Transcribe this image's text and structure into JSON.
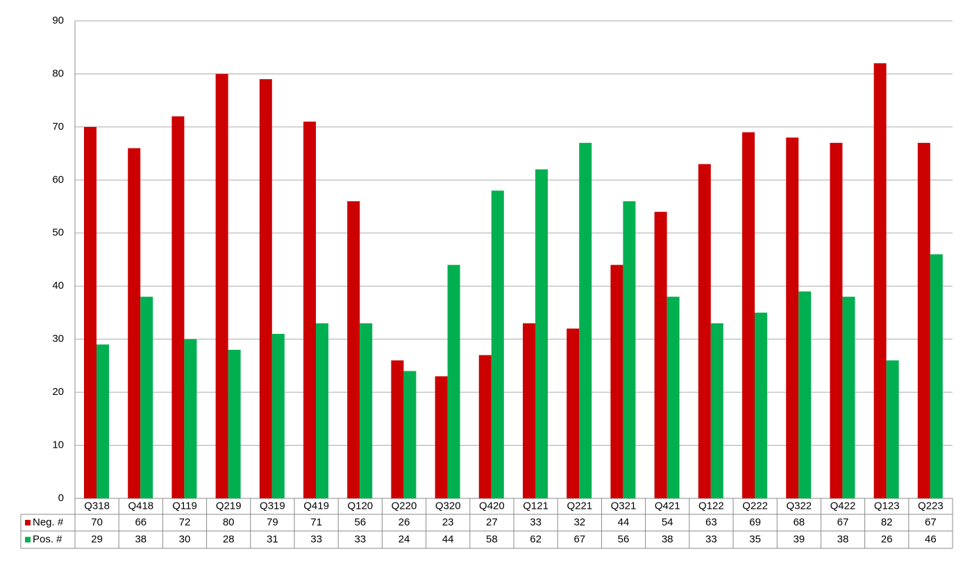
{
  "chart_data": {
    "type": "bar",
    "categories": [
      "Q318",
      "Q418",
      "Q119",
      "Q219",
      "Q319",
      "Q419",
      "Q120",
      "Q220",
      "Q320",
      "Q420",
      "Q121",
      "Q221",
      "Q321",
      "Q421",
      "Q122",
      "Q222",
      "Q322",
      "Q422",
      "Q123",
      "Q223"
    ],
    "series": [
      {
        "name": "Neg. #",
        "color": "#cc0000",
        "values": [
          70,
          66,
          72,
          80,
          79,
          71,
          56,
          26,
          23,
          27,
          33,
          32,
          44,
          54,
          63,
          69,
          68,
          67,
          82,
          67
        ]
      },
      {
        "name": "Pos. #",
        "color": "#00b050",
        "values": [
          29,
          38,
          30,
          28,
          31,
          33,
          33,
          24,
          44,
          58,
          62,
          67,
          56,
          38,
          33,
          35,
          39,
          38,
          26,
          46
        ]
      }
    ],
    "ylim": [
      0,
      90
    ],
    "yticks": [
      0,
      10,
      20,
      30,
      40,
      50,
      60,
      70,
      80,
      90
    ],
    "grid": true
  }
}
